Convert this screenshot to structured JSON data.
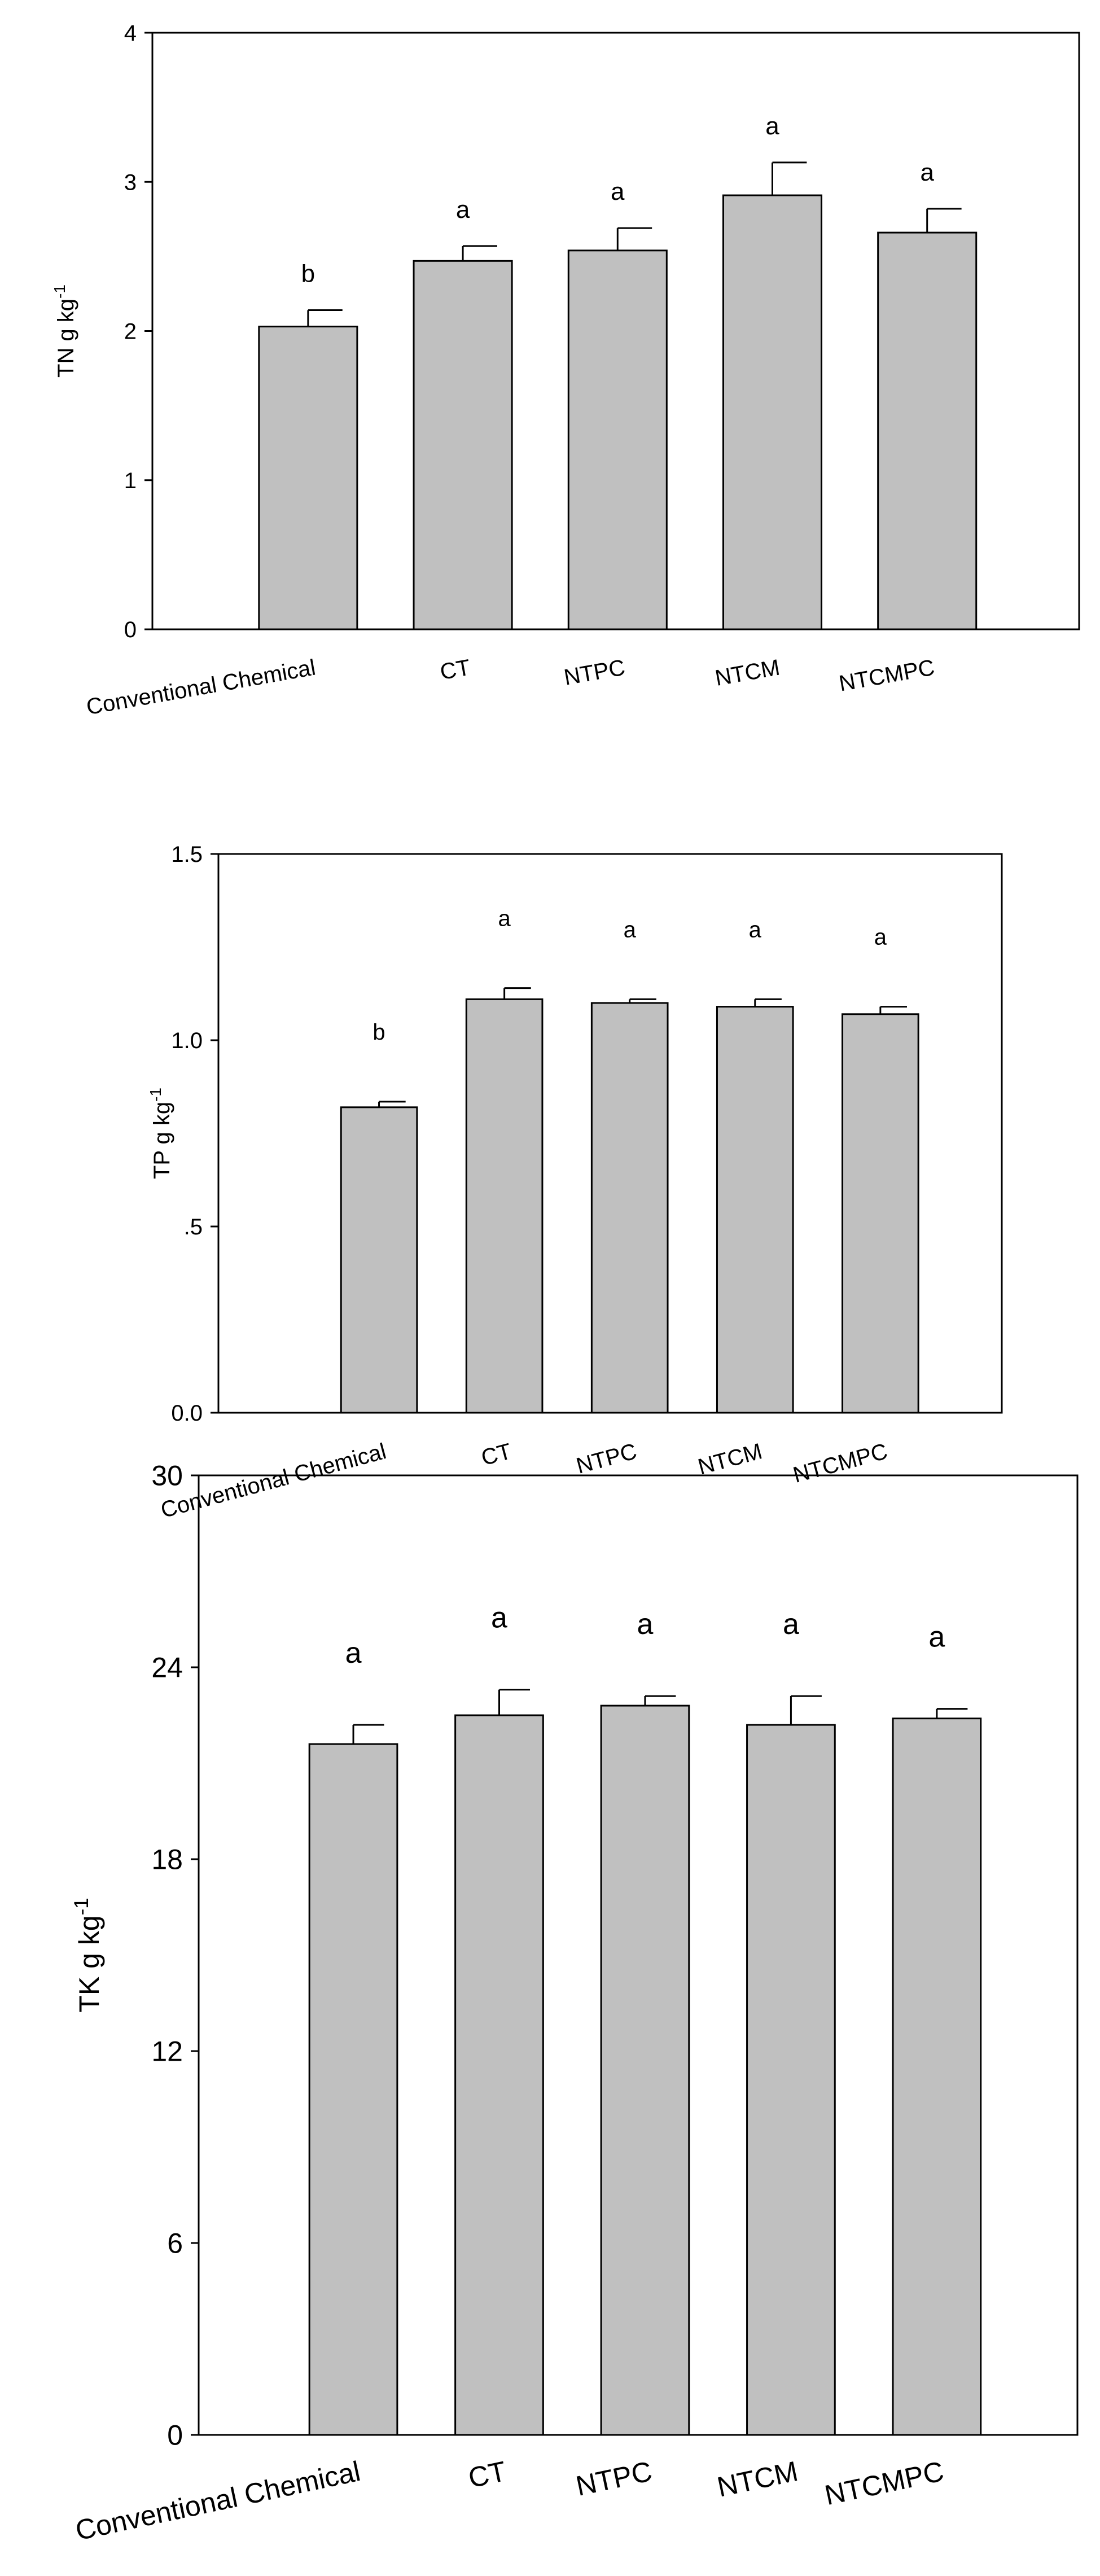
{
  "chart_data": [
    {
      "type": "bar",
      "y_label": "TN g kg",
      "y_label_sup": "-1",
      "categories": [
        "Conventional Chemical",
        "CT",
        "NTPC",
        "NTCM",
        "NTCMPC"
      ],
      "values": [
        2.03,
        2.47,
        2.54,
        2.91,
        2.66
      ],
      "errors": [
        0.11,
        0.1,
        0.15,
        0.22,
        0.16
      ],
      "letters": [
        "b",
        "a",
        "a",
        "a",
        "a"
      ],
      "color": "#c0c0c0",
      "ylim": [
        0,
        4
      ],
      "yticks": [
        0,
        1,
        2,
        3,
        4
      ]
    },
    {
      "type": "bar",
      "y_label": "TP g kg",
      "y_label_sup": "-1",
      "categories": [
        "Conventional Chemical",
        "CT",
        "NTPC",
        "NTCM",
        "NTCMPC"
      ],
      "values": [
        0.82,
        1.11,
        1.1,
        1.09,
        1.07
      ],
      "errors": [
        0.015,
        0.03,
        0.01,
        0.02,
        0.02
      ],
      "letters": [
        "b",
        "a",
        "a",
        "a",
        "a"
      ],
      "color": "#c0c0c0",
      "ylim": [
        0,
        1.5
      ],
      "yticks": [
        {
          "value": 0,
          "label": "0.0"
        },
        {
          "value": 0.5,
          "label": ".5"
        },
        {
          "value": 1,
          "label": "1.0"
        },
        1.5
      ]
    },
    {
      "type": "bar",
      "y_label": "TK g kg",
      "y_label_sup": "-1",
      "categories": [
        "Conventional Chemical",
        "CT",
        "NTPC",
        "NTCM",
        "NTCMPC"
      ],
      "values": [
        21.6,
        22.5,
        22.8,
        22.2,
        22.4
      ],
      "errors": [
        0.6,
        0.8,
        0.3,
        0.9,
        0.3
      ],
      "letters": [
        "a",
        "a",
        "a",
        "a",
        "a"
      ],
      "color": "#c0c0c0",
      "ylim": [
        0,
        30
      ],
      "yticks": [
        0,
        6,
        12,
        18,
        24,
        30
      ]
    }
  ]
}
